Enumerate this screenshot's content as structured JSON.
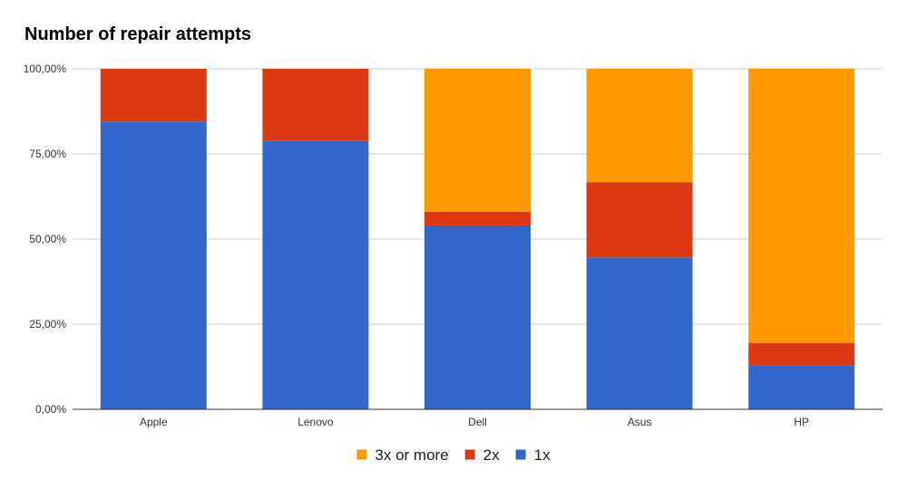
{
  "chart_data": {
    "type": "bar",
    "stacked": true,
    "title": "Number of repair attempts",
    "xlabel": "",
    "ylabel": "",
    "ylim": [
      0,
      100
    ],
    "y_tick_labels": [
      "0,00%",
      "25,00%",
      "50,00%",
      "75,00%",
      "100,00%"
    ],
    "y_ticks": [
      0,
      25,
      50,
      75,
      100
    ],
    "categories": [
      "Apple",
      "Lenovo",
      "Dell",
      "Asus",
      "HP"
    ],
    "series": [
      {
        "name": "1x",
        "color": "#3366cc",
        "values": [
          84.5,
          78.8,
          54.0,
          44.6,
          13.0
        ]
      },
      {
        "name": "2x",
        "color": "#dc3912",
        "values": [
          15.5,
          21.2,
          4.0,
          22.1,
          6.5
        ]
      },
      {
        "name": "3x or more",
        "color": "#ff9900",
        "values": [
          0,
          0,
          42.0,
          33.3,
          80.5
        ]
      }
    ],
    "legend_order": [
      "3x or more",
      "2x",
      "1x"
    ],
    "legend_position": "bottom",
    "grid": true
  }
}
